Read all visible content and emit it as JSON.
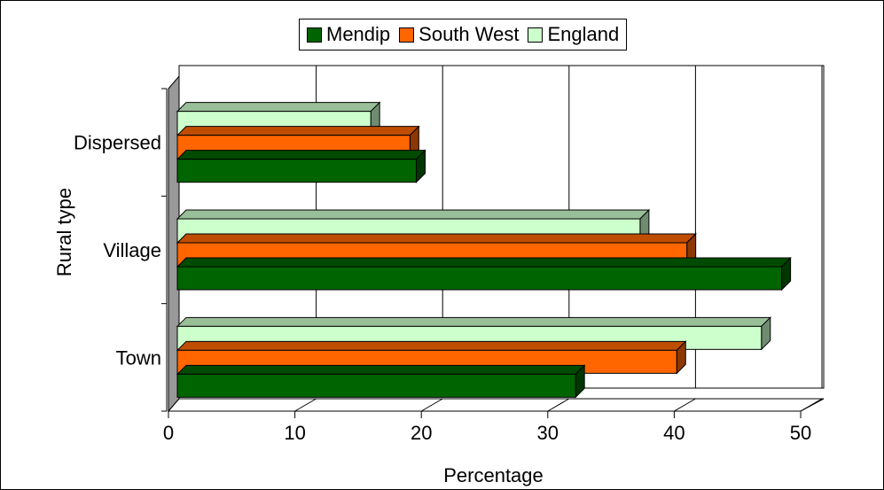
{
  "chart_data": {
    "type": "bar",
    "orientation": "horizontal",
    "three_d": true,
    "categories": [
      "Dispersed",
      "Village",
      "Town"
    ],
    "series": [
      {
        "name": "Mendip",
        "color": "#006400",
        "values": [
          19.6,
          48.5,
          32.2
        ]
      },
      {
        "name": "South West",
        "color": "#ff6600",
        "values": [
          19.1,
          41.0,
          40.2
        ]
      },
      {
        "name": "England",
        "color": "#ccffcc",
        "values": [
          16.0,
          37.3,
          46.9
        ]
      }
    ],
    "xlabel": "Percentage",
    "ylabel": "Rural type",
    "xlim": [
      0,
      50
    ],
    "xticks": [
      "0",
      "10",
      "20",
      "30",
      "40",
      "50"
    ],
    "grid": "vertical",
    "legend_position": "top"
  }
}
